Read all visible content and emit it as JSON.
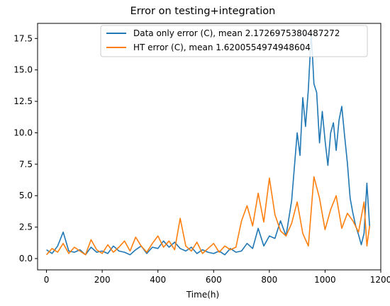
{
  "chart_data": {
    "type": "line",
    "title": "Error on testing+integration",
    "xlabel": "Time(h)",
    "ylabel": "",
    "xlim": [
      -32,
      1200
    ],
    "ylim": [
      -0.9,
      18.7
    ],
    "xticks": [
      0,
      200,
      400,
      600,
      800,
      1000,
      1200
    ],
    "xtick_labels": [
      "0",
      "200",
      "400",
      "600",
      "800",
      "1000",
      "1200"
    ],
    "yticks": [
      0,
      2.5,
      5,
      7.5,
      10,
      12.5,
      15,
      17.5
    ],
    "ytick_labels": [
      "0.0",
      "2.5",
      "5.0",
      "7.5",
      "10.0",
      "12.5",
      "15.0",
      "17.5"
    ],
    "grid": false,
    "legend_position": "top-right",
    "series": [
      {
        "name": "Data only error (C), mean 2.1726975380487272",
        "color": "#1f77b4",
        "x": [
          0,
          20,
          40,
          60,
          80,
          100,
          120,
          140,
          160,
          180,
          200,
          220,
          240,
          260,
          280,
          300,
          320,
          340,
          360,
          380,
          400,
          420,
          440,
          460,
          480,
          500,
          520,
          540,
          560,
          580,
          600,
          620,
          640,
          660,
          680,
          700,
          720,
          740,
          760,
          780,
          800,
          820,
          840,
          860,
          880,
          900,
          910,
          920,
          930,
          940,
          950,
          955,
          960,
          970,
          980,
          990,
          1000,
          1010,
          1020,
          1030,
          1040,
          1050,
          1060,
          1070,
          1080,
          1090,
          1100,
          1110,
          1120,
          1130,
          1140,
          1150,
          1160
        ],
        "y": [
          0.7,
          0.4,
          1.0,
          2.1,
          0.6,
          0.5,
          0.7,
          0.3,
          0.9,
          0.5,
          0.6,
          0.4,
          1.0,
          0.6,
          0.5,
          0.3,
          0.7,
          1.0,
          0.4,
          0.9,
          0.8,
          1.4,
          0.9,
          1.3,
          0.8,
          0.6,
          0.9,
          0.4,
          0.7,
          0.5,
          0.4,
          0.6,
          0.3,
          0.8,
          0.5,
          0.6,
          1.2,
          0.8,
          2.4,
          1.0,
          1.8,
          1.6,
          3.0,
          1.8,
          4.6,
          10.0,
          8.2,
          12.8,
          10.5,
          13.5,
          17.8,
          16.0,
          13.9,
          13.2,
          9.2,
          11.7,
          9.4,
          7.4,
          10.0,
          10.8,
          8.6,
          11.0,
          12.1,
          9.8,
          7.6,
          4.8,
          3.6,
          2.6,
          1.9,
          1.1,
          2.0,
          6.0,
          2.5
        ]
      },
      {
        "name": "HT error (C), mean 1.6200554974948604",
        "color": "#ff7f0e",
        "x": [
          0,
          20,
          40,
          60,
          80,
          100,
          120,
          140,
          160,
          180,
          200,
          220,
          240,
          260,
          280,
          300,
          320,
          340,
          360,
          380,
          400,
          420,
          440,
          460,
          480,
          500,
          520,
          540,
          560,
          580,
          600,
          620,
          640,
          660,
          680,
          700,
          720,
          740,
          760,
          780,
          800,
          820,
          840,
          860,
          880,
          900,
          920,
          940,
          960,
          980,
          1000,
          1020,
          1040,
          1060,
          1080,
          1100,
          1120,
          1140,
          1150,
          1160
        ],
        "y": [
          0.3,
          0.8,
          0.5,
          1.2,
          0.4,
          0.9,
          0.6,
          0.3,
          1.5,
          0.7,
          0.4,
          1.1,
          0.5,
          0.9,
          1.4,
          0.6,
          1.7,
          1.0,
          0.5,
          1.2,
          1.8,
          0.9,
          1.4,
          0.7,
          3.2,
          1.0,
          0.6,
          1.3,
          0.4,
          0.8,
          1.2,
          0.5,
          1.0,
          0.7,
          0.9,
          3.0,
          4.2,
          2.6,
          5.2,
          2.9,
          6.4,
          3.5,
          2.2,
          1.8,
          2.8,
          4.5,
          2.0,
          1.0,
          6.5,
          4.8,
          2.3,
          3.9,
          5.0,
          2.4,
          3.6,
          3.0,
          2.1,
          4.5,
          1.0,
          2.6
        ]
      }
    ]
  }
}
